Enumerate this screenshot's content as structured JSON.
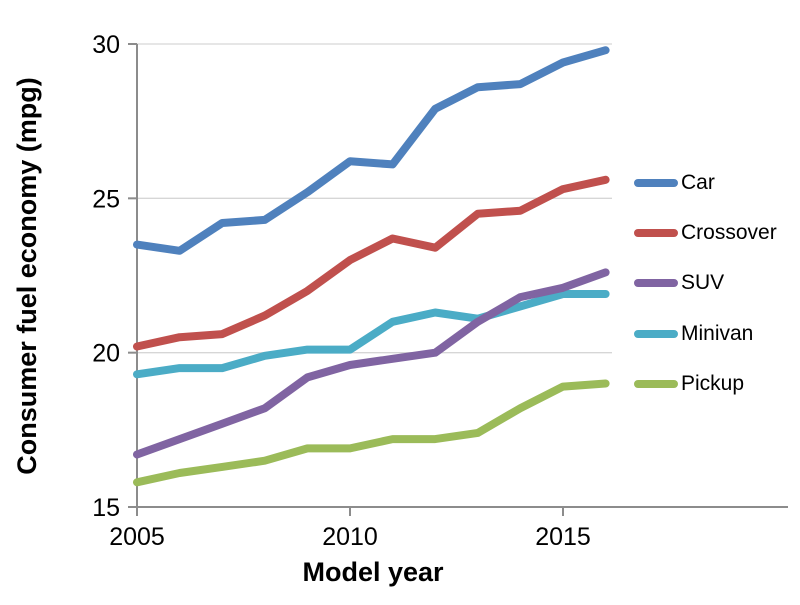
{
  "chart_data": {
    "type": "line",
    "title": "",
    "xlabel": "Model year",
    "ylabel": "Consumer fuel economy (mpg)",
    "x": [
      2005,
      2006,
      2007,
      2008,
      2009,
      2010,
      2011,
      2012,
      2013,
      2014,
      2015,
      2016
    ],
    "x_tick_labels": [
      2005,
      2010,
      2015
    ],
    "y_tick_labels": [
      15,
      20,
      25,
      30
    ],
    "xlim": [
      2005,
      2016
    ],
    "ylim": [
      15,
      30
    ],
    "grid": "horizontal gridlines at 20, 25, 30; light gray",
    "legend_position": "right",
    "series": [
      {
        "name": "Car",
        "color": "#4F81BD",
        "values": [
          23.5,
          23.3,
          24.2,
          24.3,
          25.2,
          26.2,
          26.1,
          27.9,
          28.6,
          28.7,
          29.4,
          29.8
        ]
      },
      {
        "name": "Crossover",
        "color": "#C0504D",
        "values": [
          20.2,
          20.5,
          20.6,
          21.2,
          22.0,
          23.0,
          23.7,
          23.4,
          24.5,
          24.6,
          25.3,
          25.6
        ]
      },
      {
        "name": "SUV",
        "color": "#8064A2",
        "values": [
          16.7,
          17.2,
          17.7,
          18.2,
          19.2,
          19.6,
          19.8,
          20.0,
          21.0,
          21.8,
          22.1,
          22.6
        ]
      },
      {
        "name": "Minivan",
        "color": "#4BACC6",
        "values": [
          19.3,
          19.5,
          19.5,
          19.9,
          20.1,
          20.1,
          21.0,
          21.3,
          21.1,
          21.5,
          21.9,
          21.9
        ]
      },
      {
        "name": "Pickup",
        "color": "#9BBB59",
        "values": [
          15.8,
          16.1,
          16.3,
          16.5,
          16.9,
          16.9,
          17.2,
          17.2,
          17.4,
          18.2,
          18.9,
          19.0
        ]
      }
    ]
  },
  "style": {
    "background": "#FFFFFF",
    "gridline_color": "#D6D6D6",
    "axis_color": "#8C8C8C",
    "text_color": "#000000",
    "line_width": 8
  }
}
